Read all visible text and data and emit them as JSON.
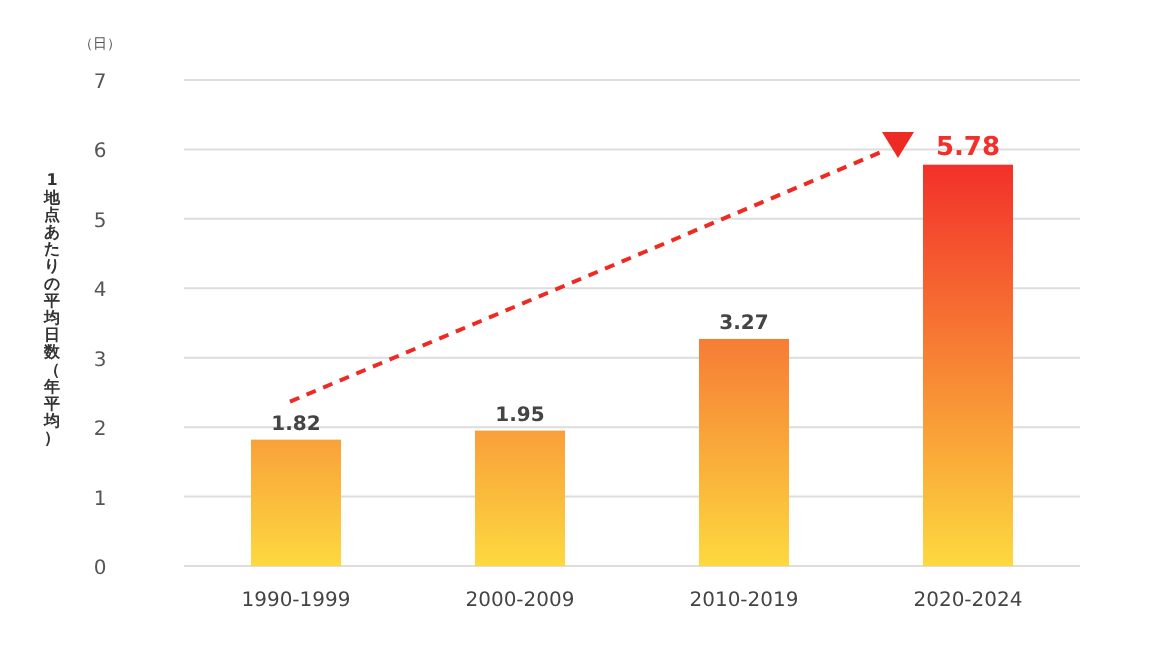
{
  "chart_data": {
    "type": "bar",
    "ylabel": "1地点あたりの平均日数（年平均）",
    "annotations": [
      "（日）"
    ],
    "categories": [
      "1990-1999",
      "2000-2009",
      "2010-2019",
      "2020-2024"
    ],
    "values": [
      1.82,
      1.95,
      3.27,
      5.78
    ],
    "colors": [
      "#f9a13a",
      "#f99f3a",
      "#f67c35",
      "#f2302a"
    ],
    "ylim": [
      0,
      7
    ],
    "yticks": [
      0,
      1,
      2,
      3,
      4,
      5,
      6,
      7
    ],
    "grid": "y",
    "data_labels": true
  }
}
